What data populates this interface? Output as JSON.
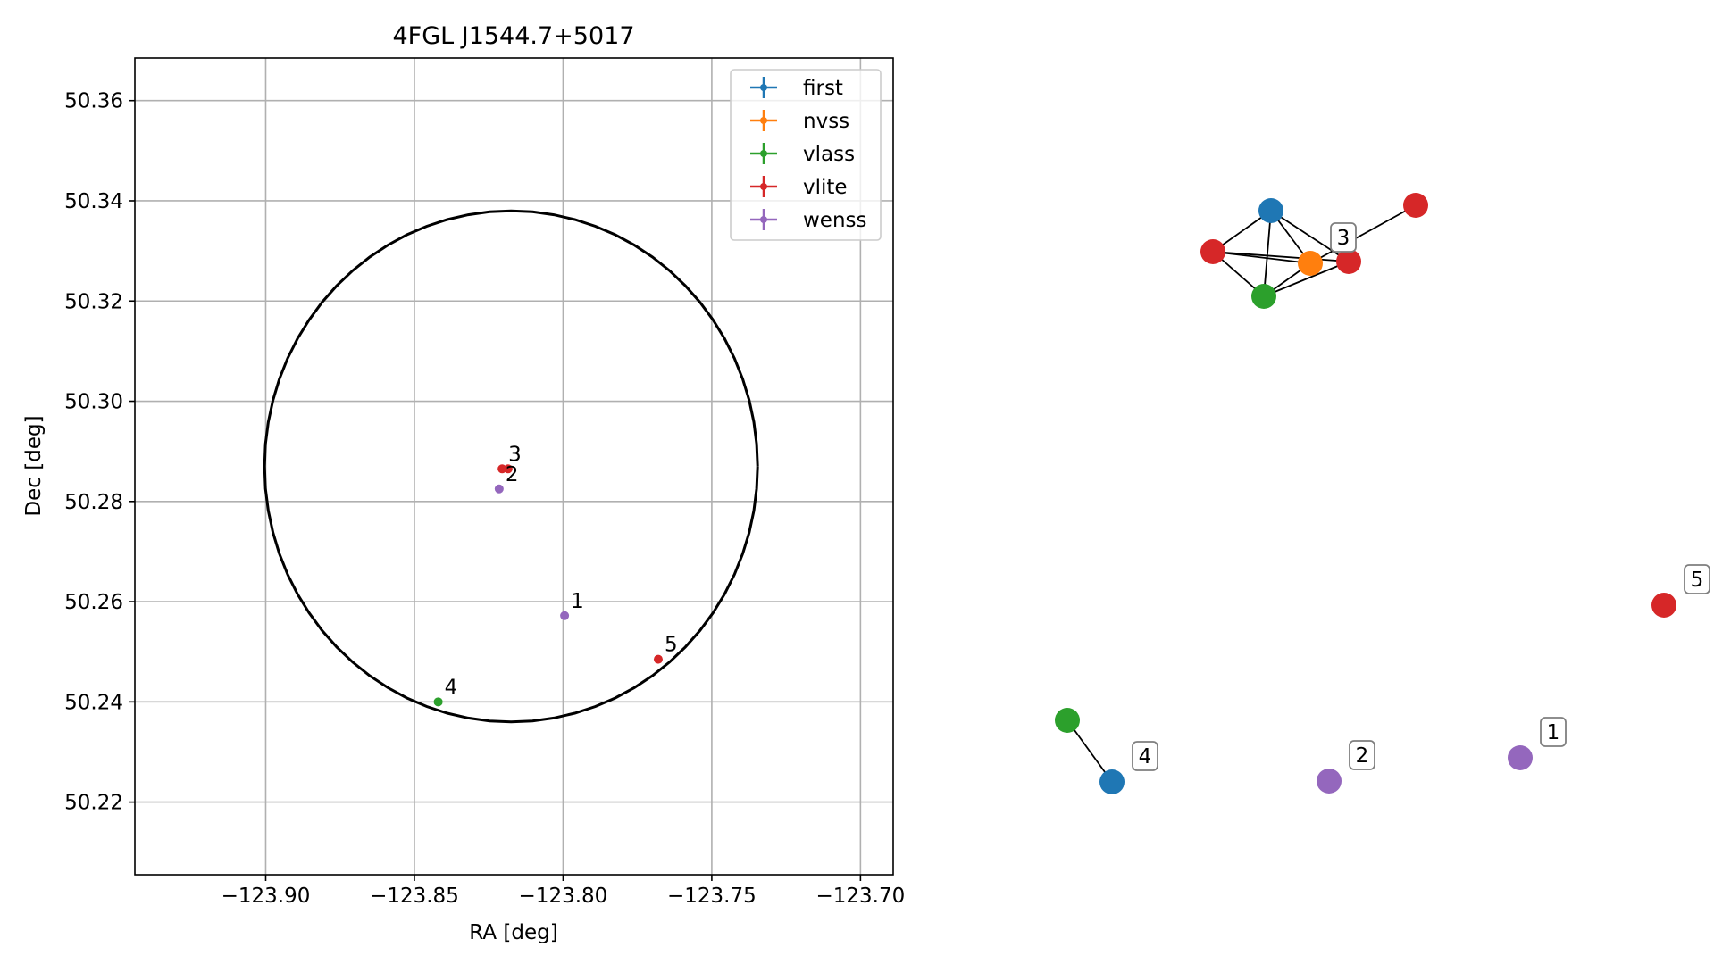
{
  "chart_data": [
    {
      "type": "scatter",
      "title": "4FGL J1544.7+5017",
      "xlabel": "RA [deg]",
      "ylabel": "Dec [deg]",
      "xlim": [
        -123.944,
        -123.689
      ],
      "ylim": [
        50.2055,
        50.3685
      ],
      "x_ticks": [
        -123.9,
        -123.85,
        -123.8,
        -123.75,
        -123.7
      ],
      "x_tick_labels": [
        "−123.90",
        "−123.85",
        "−123.80",
        "−123.75",
        "−123.70"
      ],
      "y_ticks": [
        50.22,
        50.24,
        50.26,
        50.28,
        50.3,
        50.32,
        50.34,
        50.36
      ],
      "y_tick_labels": [
        "50.22",
        "50.24",
        "50.26",
        "50.28",
        "50.30",
        "50.32",
        "50.34",
        "50.36"
      ],
      "grid": true,
      "legend_position": "top-right",
      "series": [
        {
          "name": "first",
          "color": "#1f77b4",
          "points": []
        },
        {
          "name": "nvss",
          "color": "#ff7f0e",
          "points": []
        },
        {
          "name": "vlass",
          "color": "#2ca02c",
          "points": [
            {
              "x": -123.842,
              "y": 50.24,
              "label": "4"
            }
          ]
        },
        {
          "name": "vlite",
          "color": "#d62728",
          "points": [
            {
              "x": -123.8205,
              "y": 50.2865,
              "label": "3"
            },
            {
              "x": -123.8185,
              "y": 50.2865,
              "label": ""
            },
            {
              "x": -123.768,
              "y": 50.2485,
              "label": "5"
            }
          ]
        },
        {
          "name": "wenss",
          "color": "#9467bd",
          "points": [
            {
              "x": -123.8215,
              "y": 50.2825,
              "label": "2"
            },
            {
              "x": -123.7995,
              "y": 50.2572,
              "label": "1"
            }
          ]
        }
      ],
      "circle": {
        "center": [
          -123.8175,
          50.287
        ],
        "ra_radius": 0.0829,
        "dec_radius": 0.051,
        "color": "#000000"
      }
    },
    {
      "type": "network",
      "nodes": [
        {
          "id": "a1",
          "color": "#1f77b4"
        },
        {
          "id": "a2",
          "color": "#d62728"
        },
        {
          "id": "a3",
          "color": "#ff7f0e"
        },
        {
          "id": "a4",
          "color": "#d62728"
        },
        {
          "id": "a5",
          "color": "#2ca02c"
        },
        {
          "id": "a6",
          "color": "#d62728"
        },
        {
          "id": "b1",
          "color": "#2ca02c"
        },
        {
          "id": "b2",
          "color": "#1f77b4"
        },
        {
          "id": "c1",
          "color": "#9467bd"
        },
        {
          "id": "d1",
          "color": "#9467bd"
        },
        {
          "id": "e1",
          "color": "#d62728"
        }
      ],
      "edges": [
        [
          "a1",
          "a2"
        ],
        [
          "a1",
          "a3"
        ],
        [
          "a1",
          "a4"
        ],
        [
          "a1",
          "a5"
        ],
        [
          "a2",
          "a3"
        ],
        [
          "a2",
          "a4"
        ],
        [
          "a2",
          "a5"
        ],
        [
          "a3",
          "a5"
        ],
        [
          "a3",
          "a6"
        ],
        [
          "a4",
          "a5"
        ],
        [
          "b1",
          "b2"
        ]
      ],
      "labels": [
        {
          "text": "3",
          "node": "a3"
        },
        {
          "text": "4",
          "node": "b2"
        },
        {
          "text": "2",
          "node": "c1"
        },
        {
          "text": "1",
          "node": "d1"
        },
        {
          "text": "5",
          "node": "e1"
        }
      ]
    }
  ]
}
